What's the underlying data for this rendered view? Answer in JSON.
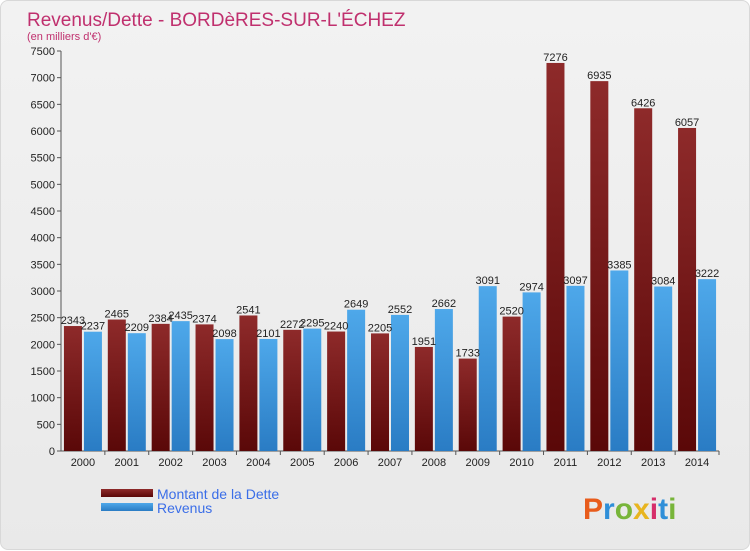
{
  "chart_data": {
    "type": "bar",
    "title": "Revenus/Dette - BORDèRES-SUR-L'ÉCHEZ",
    "subtitle": "(en milliers d'€)",
    "categories": [
      "2000",
      "2001",
      "2002",
      "2003",
      "2004",
      "2005",
      "2006",
      "2007",
      "2008",
      "2009",
      "2010",
      "2011",
      "2012",
      "2013",
      "2014"
    ],
    "series": [
      {
        "name": "Montant de la Dette",
        "color": "#8b1a1a",
        "values": [
          2343,
          2465,
          2384,
          2374,
          2541,
          2272,
          2240,
          2205,
          1951,
          1733,
          2520,
          7276,
          6935,
          6426,
          6057
        ]
      },
      {
        "name": "Revenus",
        "color": "#3a9ae0",
        "values": [
          2237,
          2209,
          2435,
          2098,
          2101,
          2295,
          2649,
          2552,
          2662,
          3091,
          2974,
          3097,
          3385,
          3084,
          3222
        ]
      }
    ],
    "ylim": [
      0,
      7500
    ],
    "yticks": [
      0,
      500,
      1000,
      1500,
      2000,
      2500,
      3000,
      3500,
      4000,
      4500,
      5000,
      5500,
      6000,
      6500,
      7000,
      7500
    ],
    "grid": false,
    "legend_position": "bottom-left"
  },
  "logo": {
    "letters": [
      "P",
      "r",
      "o",
      "x",
      "i",
      "t",
      "i"
    ],
    "colors": [
      "#e85c1c",
      "#2f8fd8",
      "#78b53a",
      "#e8b520",
      "#d62e6a",
      "#2f8fd8",
      "#78b53a"
    ]
  }
}
